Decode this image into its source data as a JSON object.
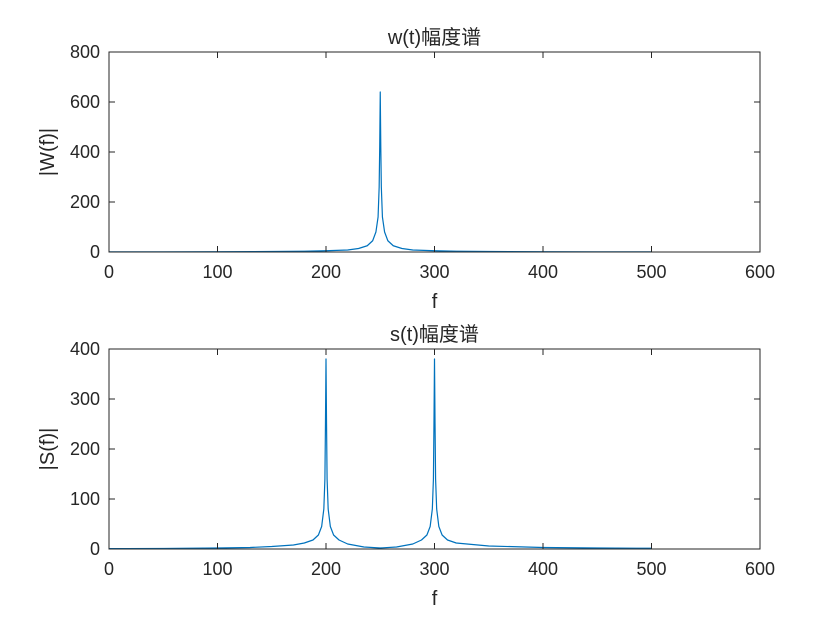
{
  "colors": {
    "series": "#0072BD",
    "axes": "#262626",
    "background": "#ffffff"
  },
  "chart_data": [
    {
      "type": "line",
      "title": "w(t)幅度谱",
      "xlabel": "f",
      "ylabel": "|W(f)|",
      "xlim": [
        0,
        600
      ],
      "ylim": [
        0,
        800
      ],
      "xticks": [
        "0",
        "100",
        "200",
        "300",
        "400",
        "500",
        "600"
      ],
      "yticks": [
        "0",
        "200",
        "400",
        "600",
        "800"
      ],
      "grid": false,
      "series": [
        {
          "x": [
            0,
            50,
            100,
            150,
            180,
            200,
            220,
            230,
            238,
            243,
            246,
            248,
            249,
            249.5,
            250,
            250.5,
            251,
            252,
            254,
            257,
            262,
            270,
            280,
            300,
            320,
            350,
            400,
            450,
            500
          ],
          "values": [
            0.5,
            0.7,
            1,
            2,
            3,
            5,
            8,
            14,
            25,
            45,
            80,
            140,
            260,
            420,
            640,
            420,
            260,
            140,
            80,
            45,
            25,
            14,
            8,
            5,
            3,
            2,
            1,
            0.7,
            0.5
          ]
        }
      ]
    },
    {
      "type": "line",
      "title": "s(t)幅度谱",
      "xlabel": "f",
      "ylabel": "|S(f)|",
      "xlim": [
        0,
        600
      ],
      "ylim": [
        0,
        400
      ],
      "xticks": [
        "0",
        "100",
        "200",
        "300",
        "400",
        "500",
        "600"
      ],
      "yticks": [
        "0",
        "100",
        "200",
        "300",
        "400"
      ],
      "grid": false,
      "series": [
        {
          "x": [
            0,
            50,
            100,
            130,
            150,
            170,
            180,
            188,
            193,
            196,
            198,
            199,
            199.5,
            200,
            200.5,
            201,
            202,
            204,
            207,
            212,
            220,
            235,
            250,
            265,
            280,
            288,
            293,
            296,
            298,
            299,
            299.5,
            300,
            300.5,
            301,
            302,
            304,
            307,
            312,
            320,
            350,
            400,
            450,
            500
          ],
          "values": [
            0.8,
            1,
            2,
            3,
            5,
            8,
            12,
            18,
            28,
            45,
            80,
            140,
            250,
            380,
            250,
            140,
            80,
            45,
            28,
            18,
            10,
            4,
            2,
            4,
            10,
            18,
            28,
            45,
            80,
            140,
            250,
            380,
            250,
            140,
            80,
            45,
            28,
            18,
            12,
            6,
            3,
            2,
            1.5
          ]
        }
      ]
    }
  ]
}
